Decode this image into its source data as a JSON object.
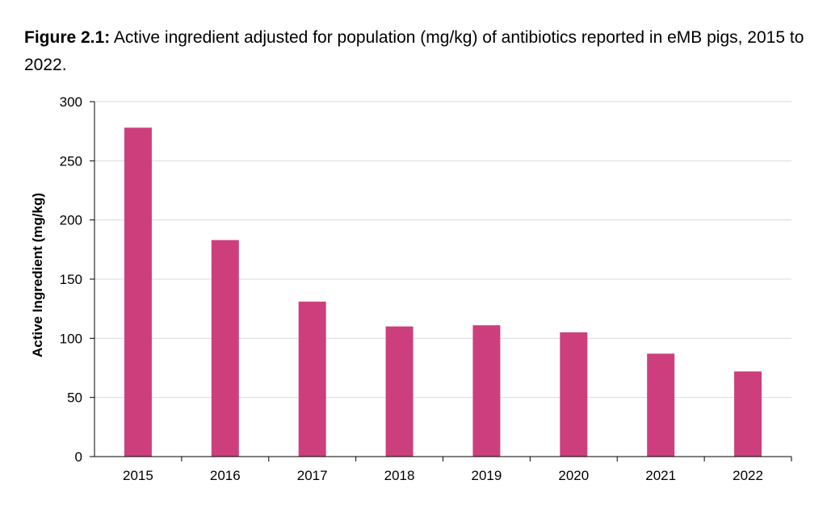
{
  "caption": {
    "label": "Figure 2.1:",
    "text": " Active ingredient adjusted for population (mg/kg) of antibiotics reported in eMB pigs, 2015 to 2022."
  },
  "colors": {
    "bar": "#cc3f7c",
    "grid": "#d9d9d9",
    "axis": "#000000"
  },
  "chart_data": {
    "type": "bar",
    "categories": [
      "2015",
      "2016",
      "2017",
      "2018",
      "2019",
      "2020",
      "2021",
      "2022"
    ],
    "values": [
      278,
      183,
      131,
      110,
      111,
      105,
      87,
      72
    ],
    "ylabel": "Active Ingredient (mg/kg)",
    "xlabel": "",
    "ylim": [
      0,
      300
    ],
    "yticks": [
      "0",
      "50",
      "100",
      "150",
      "200",
      "250",
      "300"
    ],
    "grid": true,
    "legend": "none"
  }
}
